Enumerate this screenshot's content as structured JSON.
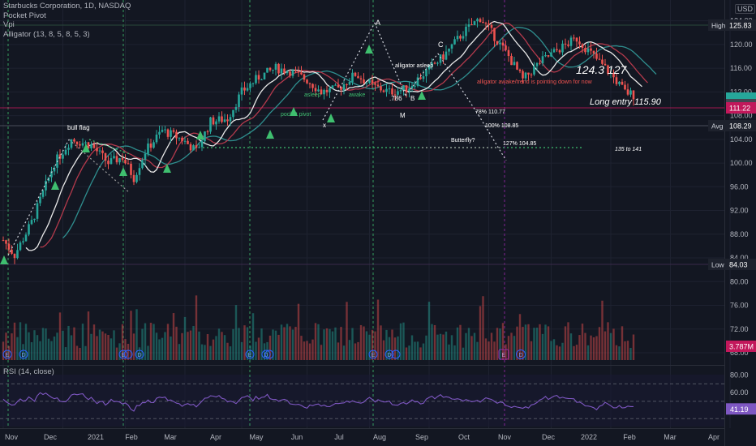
{
  "header": {
    "title": "Starbucks Corporation, 1D, NASDAQ",
    "indicators": [
      "Pocket Pivot",
      "Vpi",
      "Alligator (13, 8, 5, 8, 5, 3)"
    ],
    "currency": "USD"
  },
  "colors": {
    "background": "#131722",
    "grid": "#1e2230",
    "up": "#26a69a",
    "down": "#ef5350",
    "alligator_jaw": "#2f8f8f",
    "alligator_teeth": "#b43a4c",
    "alligator_lips": "#e8e8e8",
    "rsi": "#7e57c2",
    "pivot": "#3fbf6f",
    "label_bg": "#1e222d"
  },
  "chart_data": {
    "type": "candlestick",
    "ylim": [
      66.5,
      127.5
    ],
    "yticks": [
      68,
      72,
      76,
      80,
      84,
      88,
      92,
      96,
      100,
      104,
      108,
      112,
      116,
      120,
      124
    ],
    "x_labels": [
      "Nov",
      "Dec",
      "2021",
      "Feb",
      "Mar",
      "Apr",
      "May",
      "Jun",
      "Jul",
      "Aug",
      "Sep",
      "Oct",
      "Nov",
      "Dec",
      "2022",
      "Feb",
      "Mar",
      "Apr"
    ],
    "price_labels": [
      {
        "label": "High",
        "value": 125.83
      },
      {
        "label": "Low",
        "value": 84.03
      },
      {
        "label": "Avg",
        "value": 108.29
      },
      {
        "label": "",
        "value": 111.22
      }
    ],
    "volume_last": "3.787M",
    "rsi": {
      "title": "RSI (14, close)",
      "ticks": [
        80.0,
        60.0,
        40.0
      ],
      "upper": 70,
      "lower": 30,
      "last": 41.19
    },
    "annotations": [
      {
        "text": "A",
        "x": 1.0,
        "y": 126.5
      },
      {
        "text": "C",
        "x": 1.0,
        "y": 122.0
      },
      {
        "text": "124.3   127",
        "x": 1.0,
        "y": 120.3
      },
      {
        "text": "alligator asleep",
        "x": 1.0,
        "y": 118.6
      },
      {
        "text": "alligator awake/trend is pointing down for now",
        "x": 1.0,
        "y": 116.8
      },
      {
        "text": "asleep",
        "x": 1.0,
        "y": 115.3
      },
      {
        "text": "awake",
        "x": 1.0,
        "y": 115.0
      },
      {
        "text": ".786",
        "x": 1.0,
        "y": 114.3
      },
      {
        "text": "B",
        "x": 1.0,
        "y": 114.3
      },
      {
        "text": "Long entry 115.90",
        "x": 1.0,
        "y": 113.9
      },
      {
        "text": "78% 110.77",
        "x": 1.0,
        "y": 111.0
      },
      {
        "text": "pocket pivot",
        "x": 1.0,
        "y": 110.6
      },
      {
        "text": "M",
        "x": 1.0,
        "y": 110.3
      },
      {
        "text": "x",
        "x": 1.0,
        "y": 108.3
      },
      {
        "text": "100% 108.85",
        "x": 1.0,
        "y": 108.2
      },
      {
        "text": "bull flag",
        "x": 1.0,
        "y": 107.4
      },
      {
        "text": "Butterfly?",
        "x": 1.0,
        "y": 105.8
      },
      {
        "text": "127% 104.85",
        "x": 1.0,
        "y": 105.0
      },
      {
        "text": "135 to 141",
        "x": 1.0,
        "y": 103.7
      }
    ],
    "dividends_e": [
      "E",
      "E",
      "E",
      "E",
      "E",
      "E",
      "E"
    ],
    "dividends_d": [
      "D",
      "D",
      "D",
      "D",
      "D",
      "D",
      "D"
    ],
    "future_e": "E",
    "future_d": "D"
  }
}
